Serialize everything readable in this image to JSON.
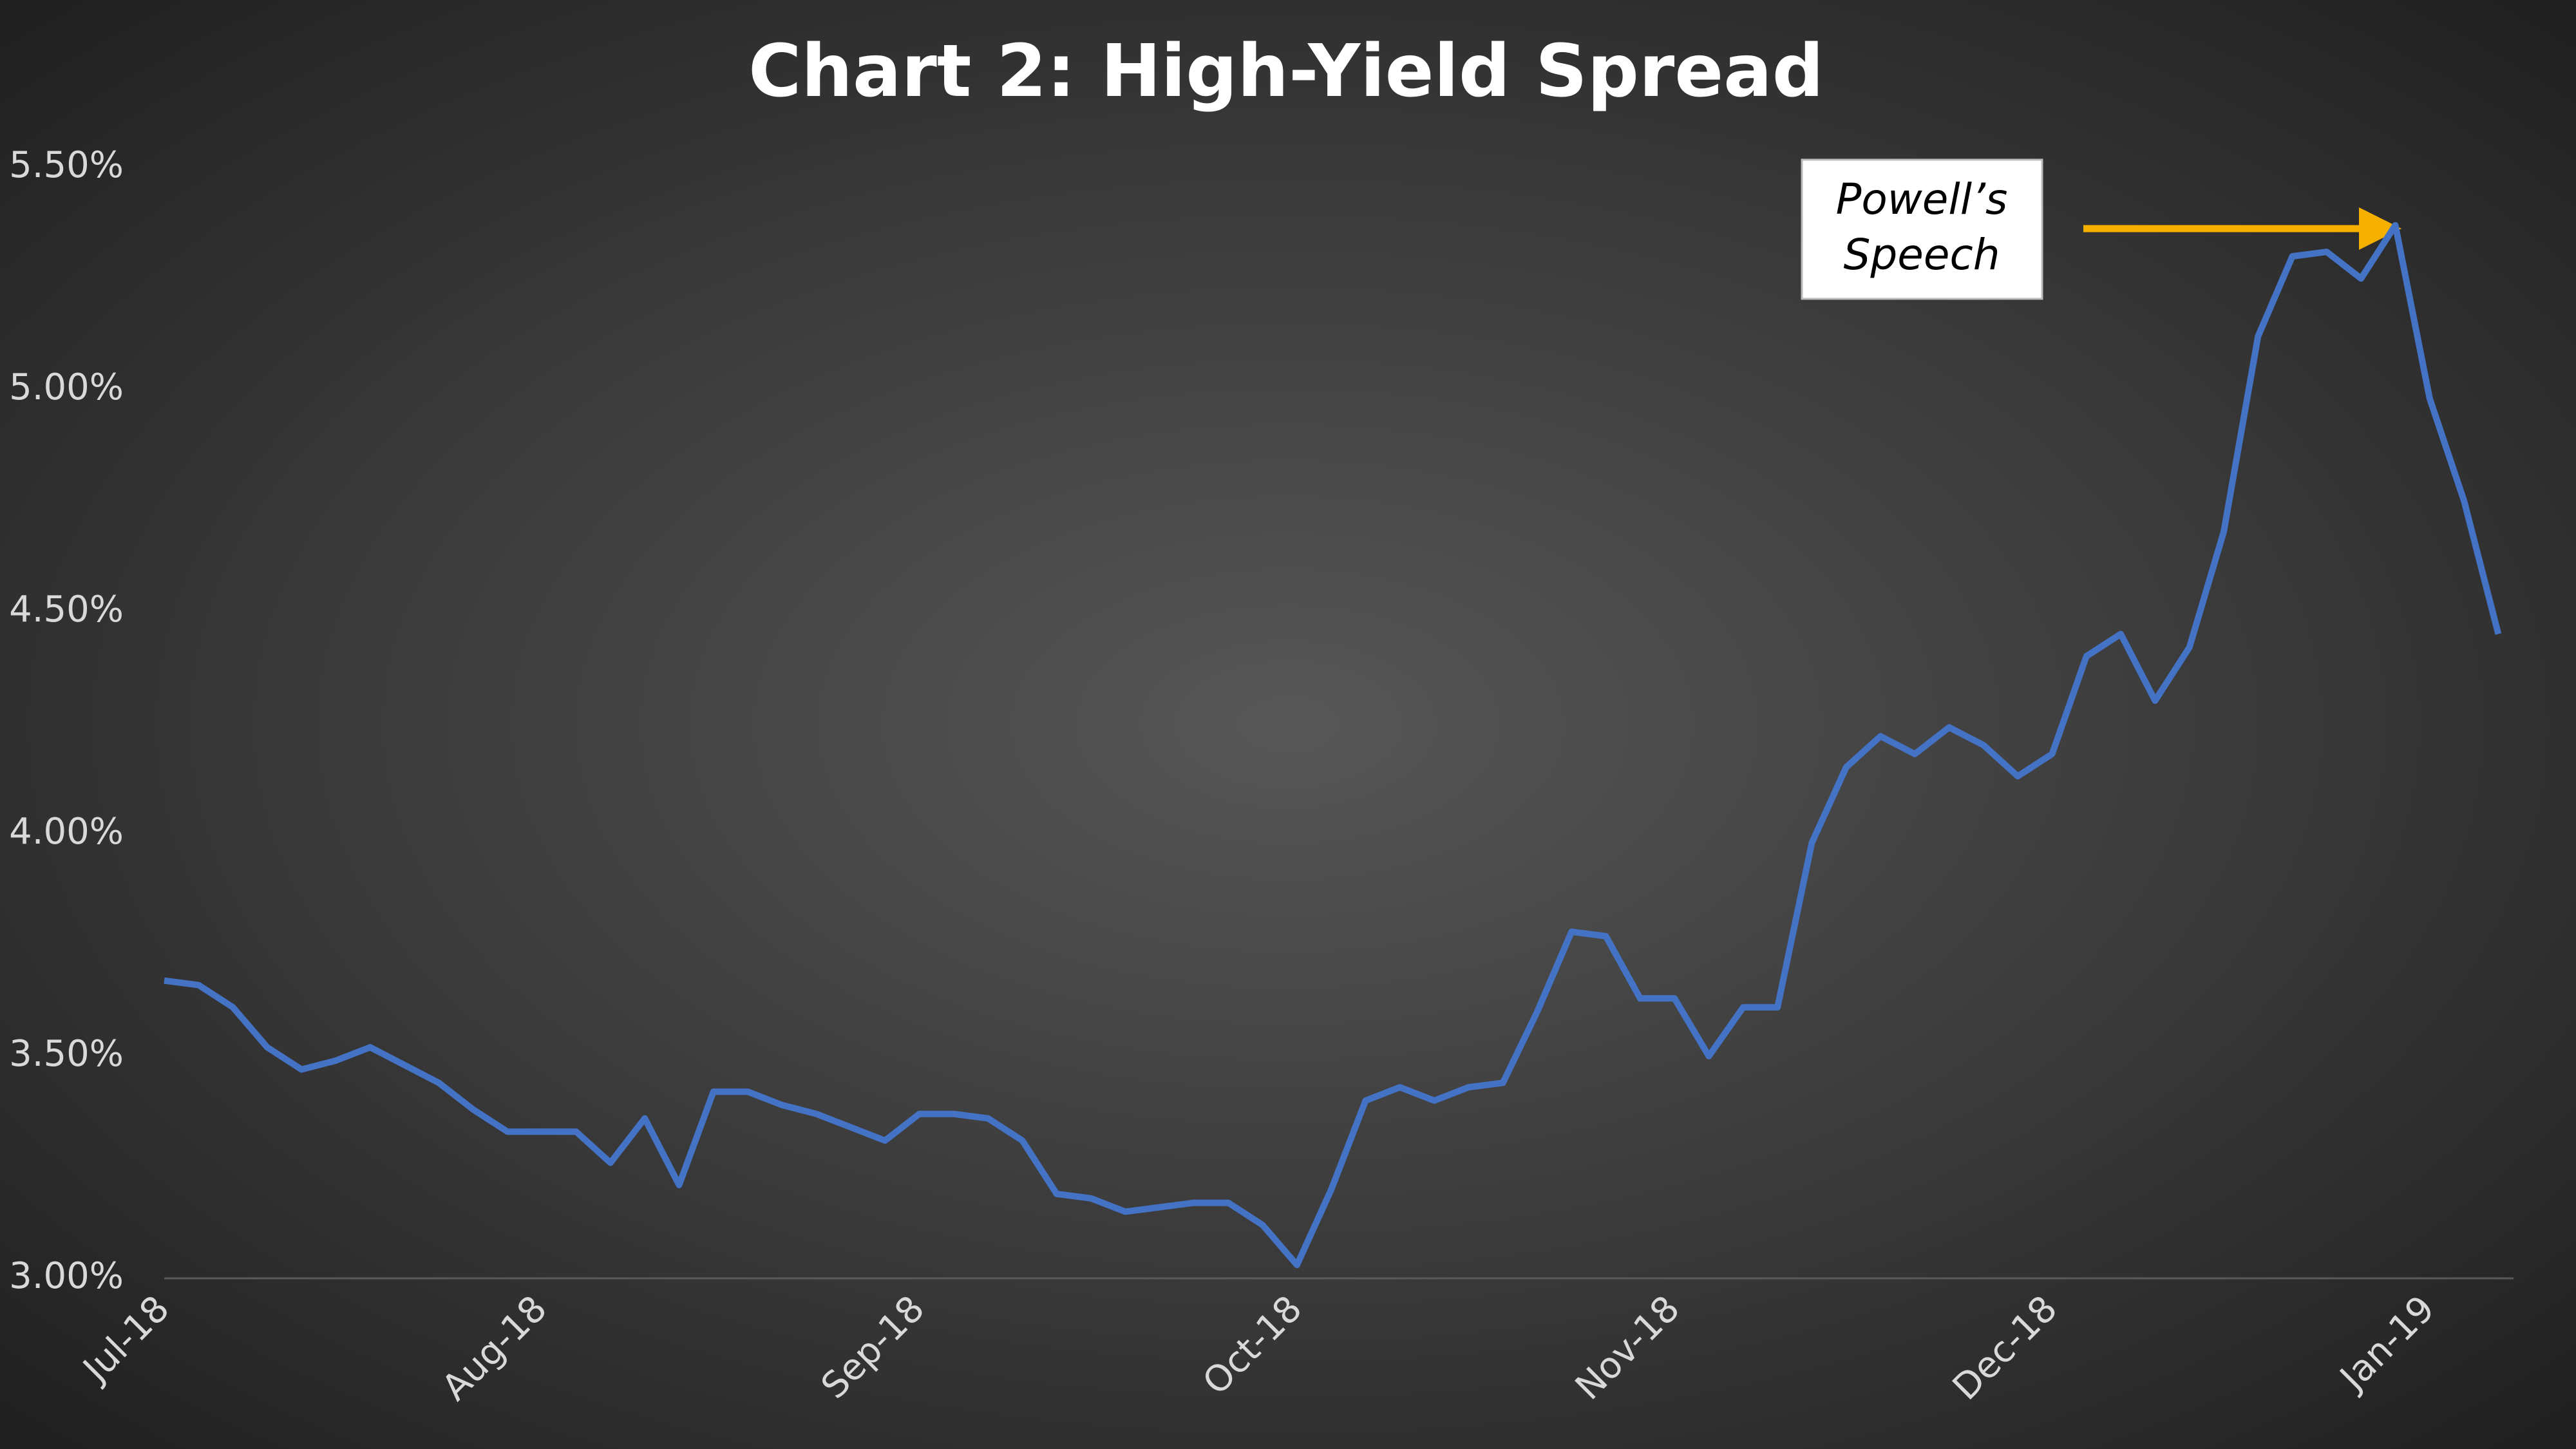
{
  "chart_data": {
    "type": "line",
    "title": "Chart 2: High-Yield Spread",
    "annotation": [
      "Powell’s",
      "Speech"
    ],
    "categories": [
      "Jul-18",
      null,
      null,
      null,
      null,
      null,
      null,
      null,
      null,
      null,
      null,
      "Aug-18",
      null,
      null,
      null,
      null,
      null,
      null,
      null,
      null,
      null,
      null,
      "Sep-18",
      null,
      null,
      null,
      null,
      null,
      null,
      null,
      null,
      null,
      null,
      "Oct-18",
      null,
      null,
      null,
      null,
      null,
      null,
      null,
      null,
      null,
      null,
      "Nov-18",
      null,
      null,
      null,
      null,
      null,
      null,
      null,
      null,
      null,
      null,
      "Dec-18",
      null,
      null,
      null,
      null,
      null,
      null,
      null,
      null,
      null,
      null,
      "Jan-19",
      null,
      null
    ],
    "series": [
      {
        "color": "#4472c4",
        "values": [
          3.67,
          3.66,
          3.61,
          3.52,
          3.47,
          3.49,
          3.52,
          3.48,
          3.44,
          3.38,
          3.33,
          3.33,
          3.33,
          3.26,
          3.36,
          3.21,
          3.42,
          3.42,
          3.39,
          3.37,
          3.34,
          3.31,
          3.37,
          3.37,
          3.36,
          3.31,
          3.19,
          3.18,
          3.15,
          3.16,
          3.17,
          3.17,
          3.12,
          3.03,
          3.2,
          3.4,
          3.43,
          3.4,
          3.43,
          3.44,
          3.6,
          3.78,
          3.77,
          3.63,
          3.63,
          3.5,
          3.61,
          3.61,
          3.98,
          4.15,
          4.22,
          4.18,
          4.24,
          4.2,
          4.13,
          4.18,
          4.4,
          4.45,
          4.3,
          4.42,
          4.68,
          5.12,
          5.3,
          5.31,
          5.25,
          5.37,
          4.98,
          4.75,
          4.45
        ]
      }
    ],
    "ylim": [
      3,
      5.5
    ],
    "yticks": [
      {
        "value": 3,
        "label": "3.00%"
      },
      {
        "value": 3.5,
        "label": "3.50%"
      },
      {
        "value": 4,
        "label": "4.00%"
      },
      {
        "value": 4.5,
        "label": "4.50%"
      },
      {
        "value": 5,
        "label": "5.00%"
      },
      {
        "value": 5.5,
        "label": "5.50%"
      }
    ],
    "grid": false
  }
}
